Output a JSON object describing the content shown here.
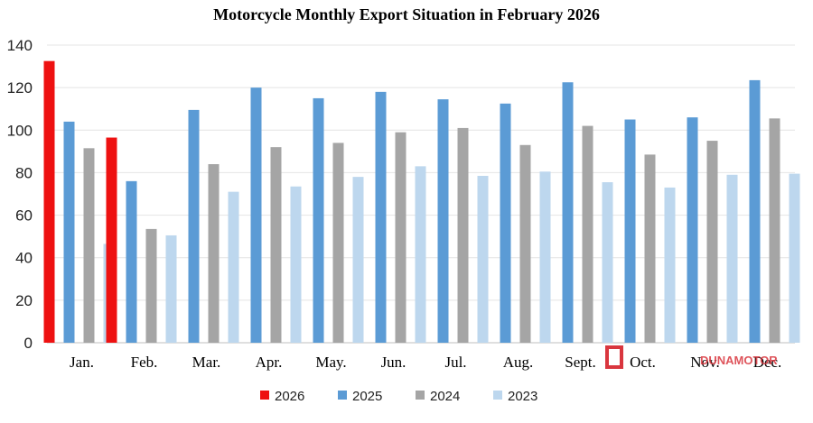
{
  "chart_data": {
    "type": "bar",
    "title": "Motorcycle Monthly Export Situation in February 2026",
    "xlabel": "",
    "ylabel": "",
    "ylim": [
      0,
      140
    ],
    "yticks": [
      "0",
      "20",
      "40",
      "60",
      "80",
      "100",
      "120",
      "140"
    ],
    "grid": true,
    "legend_position": "bottom",
    "categories": [
      "Jan.",
      "Feb.",
      "Mar.",
      "Apr.",
      "May.",
      "Jun.",
      "Jul.",
      "Aug.",
      "Sept.",
      "Oct.",
      "Nov.",
      "Dec."
    ],
    "series": [
      {
        "name": "2026",
        "color": "#ee1111",
        "values": [
          132.5,
          96.5,
          null,
          null,
          null,
          null,
          null,
          null,
          null,
          null,
          null,
          null
        ]
      },
      {
        "name": "2025",
        "color": "#5b9bd5",
        "values": [
          104,
          76,
          109.5,
          120,
          115,
          118,
          114.5,
          112.5,
          122.5,
          105,
          106,
          123.5
        ]
      },
      {
        "name": "2024",
        "color": "#a5a5a5",
        "values": [
          91.5,
          53.5,
          84,
          92,
          94,
          99,
          101,
          93,
          102,
          88.5,
          95,
          105.5
        ]
      },
      {
        "name": "2023",
        "color": "#bdd7ee",
        "values": [
          46.5,
          50.5,
          71,
          73.5,
          78,
          83,
          78.5,
          80.5,
          75.5,
          73,
          79,
          79.5
        ]
      }
    ]
  },
  "watermark": {
    "text": "DUNAMOTOR",
    "color": "#d9363e"
  }
}
